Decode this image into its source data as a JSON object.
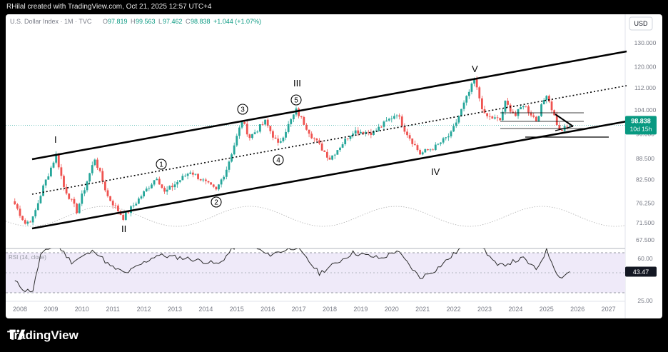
{
  "caption": "RHilal created with TradingView.com, Oct 21, 2025 12:57 UTC+4",
  "brand": "TradingView",
  "legend": {
    "symbol": "U.S. Dollar Index · 1M · TVC",
    "o_label": "O",
    "o_value": "97.819",
    "h_label": "H",
    "h_value": "99.563",
    "l_label": "L",
    "l_value": "97.462",
    "c_label": "C",
    "c_value": "98.838",
    "change": "+1.044 (+1.07%)"
  },
  "currency": "USD",
  "price_badge": {
    "value": "98.838",
    "countdown": "10d 15h"
  },
  "rsi_legend": "RSI (14, close)",
  "rsi_badge": "43.47",
  "colors": {
    "up": "#26a69a",
    "down": "#ef5350",
    "line": "#000000",
    "rsi_fill": "#efeaf9",
    "rsi_line": "#2b2b2b"
  },
  "wave_labels": {
    "I": "I",
    "II": "II",
    "III": "III",
    "IV": "IV",
    "V": "V",
    "c1": "1",
    "c2": "2",
    "c3": "3",
    "c4": "4",
    "c5": "5"
  },
  "chart_data": [
    {
      "type": "candlestick",
      "timeframe": "1M",
      "x_ticks": [
        "2008",
        "2009",
        "2010",
        "2011",
        "2012",
        "2013",
        "2014",
        "2015",
        "2016",
        "2017",
        "2018",
        "2019",
        "2020",
        "2021",
        "2022",
        "2023",
        "2024",
        "2025",
        "2026",
        "2027"
      ],
      "y_ticks": [
        67.5,
        71.5,
        76.25,
        82.5,
        88.5,
        96,
        104,
        112,
        120,
        130
      ],
      "last_price": 98.838,
      "anchors": [
        [
          "2007-11",
          76.0
        ],
        [
          "2008-03",
          71.3
        ],
        [
          "2008-06",
          72.5
        ],
        [
          "2008-10",
          80.5
        ],
        [
          "2009-03",
          89.6
        ],
        [
          "2009-06",
          80.5
        ],
        [
          "2009-11",
          74.3
        ],
        [
          "2010-06",
          88.5
        ],
        [
          "2010-11",
          78.0
        ],
        [
          "2011-05",
          72.7
        ],
        [
          "2011-10",
          76.5
        ],
        [
          "2012-06",
          83.3
        ],
        [
          "2012-09",
          79.0
        ],
        [
          "2013-07",
          84.8
        ],
        [
          "2014-05",
          79.5
        ],
        [
          "2014-09",
          85.5
        ],
        [
          "2015-03",
          100.3
        ],
        [
          "2015-06",
          95.0
        ],
        [
          "2015-12",
          100.0
        ],
        [
          "2016-05",
          92.6
        ],
        [
          "2016-12",
          103.8
        ],
        [
          "2017-06",
          95.5
        ],
        [
          "2018-01",
          88.5
        ],
        [
          "2018-10",
          97.0
        ],
        [
          "2019-06",
          96.5
        ],
        [
          "2020-03",
          102.9
        ],
        [
          "2020-06",
          97.5
        ],
        [
          "2020-12",
          89.9
        ],
        [
          "2021-06",
          92.0
        ],
        [
          "2021-12",
          96.0
        ],
        [
          "2022-09",
          114.8
        ],
        [
          "2023-01",
          102.0
        ],
        [
          "2023-07",
          100.5
        ],
        [
          "2023-09",
          106.5
        ],
        [
          "2024-01",
          102.0
        ],
        [
          "2024-04",
          106.0
        ],
        [
          "2024-09",
          100.5
        ],
        [
          "2025-01",
          109.9
        ],
        [
          "2025-06",
          96.9
        ],
        [
          "2025-10",
          98.8
        ]
      ]
    },
    {
      "type": "line",
      "title": "RSI (14, close)",
      "y_ticks": [
        25,
        60
      ],
      "anchors": [
        [
          "2007-11",
          35
        ],
        [
          "2008-03",
          27
        ],
        [
          "2008-06",
          27
        ],
        [
          "2008-09",
          58
        ],
        [
          "2009-03",
          68
        ],
        [
          "2009-09",
          52
        ],
        [
          "2010-06",
          62
        ],
        [
          "2010-12",
          48
        ],
        [
          "2011-06",
          42
        ],
        [
          "2012-06",
          58
        ],
        [
          "2013-06",
          55
        ],
        [
          "2014-06",
          50
        ],
        [
          "2015-03",
          72
        ],
        [
          "2016-01",
          58
        ],
        [
          "2016-12",
          65
        ],
        [
          "2017-09",
          42
        ],
        [
          "2018-10",
          60
        ],
        [
          "2019-09",
          55
        ],
        [
          "2020-03",
          62
        ],
        [
          "2020-12",
          38
        ],
        [
          "2021-06",
          45
        ],
        [
          "2022-09",
          74
        ],
        [
          "2023-06",
          48
        ],
        [
          "2024-04",
          55
        ],
        [
          "2024-09",
          45
        ],
        [
          "2025-01",
          62
        ],
        [
          "2025-06",
          38
        ],
        [
          "2025-10",
          43.47
        ]
      ]
    }
  ]
}
